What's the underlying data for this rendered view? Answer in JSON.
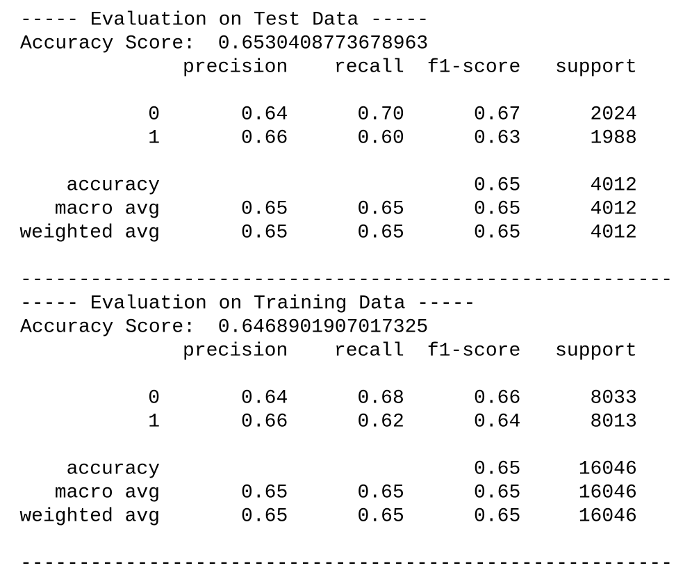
{
  "sections": [
    {
      "title": "----- Evaluation on Test Data -----",
      "accuracy_label": "Accuracy Score:",
      "accuracy_value": "0.6530408773678963",
      "columns": [
        "precision",
        "recall",
        "f1-score",
        "support"
      ],
      "rows": [
        {
          "label": "0",
          "precision": "0.64",
          "recall": "0.70",
          "f1-score": "0.67",
          "support": "2024"
        },
        {
          "label": "1",
          "precision": "0.66",
          "recall": "0.60",
          "f1-score": "0.63",
          "support": "1988"
        },
        {
          "label": "accuracy",
          "f1-score": "0.65",
          "support": "4012"
        },
        {
          "label": "macro avg",
          "precision": "0.65",
          "recall": "0.65",
          "f1-score": "0.65",
          "support": "4012"
        },
        {
          "label": "weighted avg",
          "precision": "0.65",
          "recall": "0.65",
          "f1-score": "0.65",
          "support": "4012"
        }
      ],
      "separator": "--------------------------------------------------------"
    },
    {
      "title": "----- Evaluation on Training Data -----",
      "accuracy_label": "Accuracy Score:",
      "accuracy_value": "0.6468901907017325",
      "columns": [
        "precision",
        "recall",
        "f1-score",
        "support"
      ],
      "rows": [
        {
          "label": "0",
          "precision": "0.64",
          "recall": "0.68",
          "f1-score": "0.66",
          "support": "8033"
        },
        {
          "label": "1",
          "precision": "0.66",
          "recall": "0.62",
          "f1-score": "0.64",
          "support": "8013"
        },
        {
          "label": "accuracy",
          "f1-score": "0.65",
          "support": "16046"
        },
        {
          "label": "macro avg",
          "precision": "0.65",
          "recall": "0.65",
          "f1-score": "0.65",
          "support": "16046"
        },
        {
          "label": "weighted avg",
          "precision": "0.65",
          "recall": "0.65",
          "f1-score": "0.65",
          "support": "16046"
        }
      ],
      "separator": "--------------------------------------------------------"
    }
  ]
}
